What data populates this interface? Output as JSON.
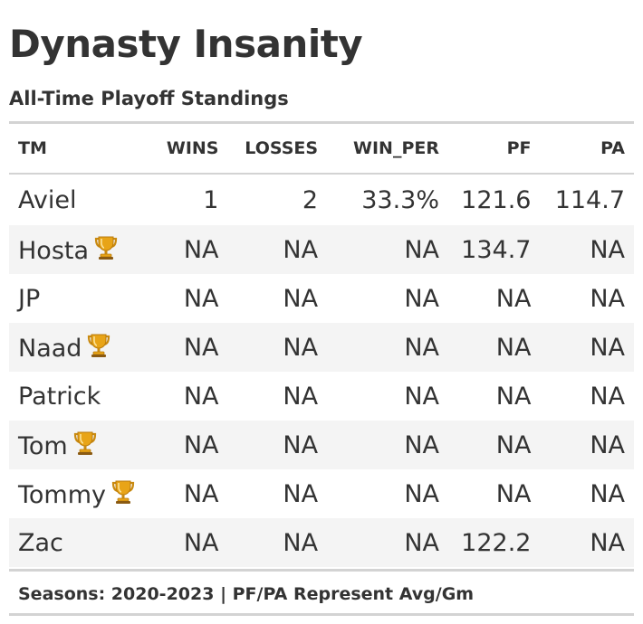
{
  "header": {
    "title": "Dynasty Insanity",
    "subtitle": "All-Time Playoff Standings"
  },
  "table": {
    "columns": [
      "TM",
      "WINS",
      "LOSSES",
      "WIN_PER",
      "PF",
      "PA"
    ],
    "rows": [
      {
        "tm": "Aviel",
        "trophy": false,
        "wins": "1",
        "losses": "2",
        "win_per": "33.3%",
        "pf": "121.6",
        "pa": "114.7"
      },
      {
        "tm": "Hosta",
        "trophy": true,
        "wins": "NA",
        "losses": "NA",
        "win_per": "NA",
        "pf": "134.7",
        "pa": "NA"
      },
      {
        "tm": "JP",
        "trophy": false,
        "wins": "NA",
        "losses": "NA",
        "win_per": "NA",
        "pf": "NA",
        "pa": "NA"
      },
      {
        "tm": "Naad",
        "trophy": true,
        "wins": "NA",
        "losses": "NA",
        "win_per": "NA",
        "pf": "NA",
        "pa": "NA"
      },
      {
        "tm": "Patrick",
        "trophy": false,
        "wins": "NA",
        "losses": "NA",
        "win_per": "NA",
        "pf": "NA",
        "pa": "NA"
      },
      {
        "tm": "Tom",
        "trophy": true,
        "wins": "NA",
        "losses": "NA",
        "win_per": "NA",
        "pf": "NA",
        "pa": "NA"
      },
      {
        "tm": "Tommy",
        "trophy": true,
        "wins": "NA",
        "losses": "NA",
        "win_per": "NA",
        "pf": "NA",
        "pa": "NA"
      },
      {
        "tm": "Zac",
        "trophy": false,
        "wins": "NA",
        "losses": "NA",
        "win_per": "NA",
        "pf": "122.2",
        "pa": "NA"
      }
    ]
  },
  "footer": {
    "note": "Seasons: 2020-2023 | PF/PA Represent Avg/Gm"
  },
  "icons": {
    "trophy": "trophy-icon"
  },
  "colors": {
    "text": "#333333",
    "rule": "#d3d3d3",
    "stripe": "#f4f4f4",
    "trophy_gold": "#e8a417"
  }
}
